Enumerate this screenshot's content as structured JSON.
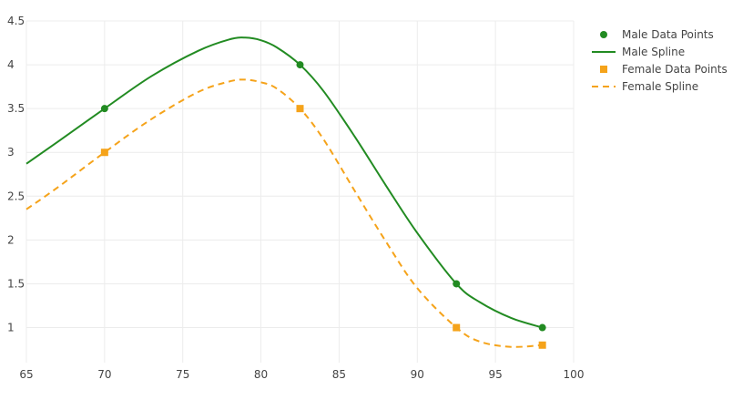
{
  "chart_data": {
    "type": "line",
    "title": "",
    "xlabel": "",
    "ylabel": "",
    "xlim": [
      65,
      100
    ],
    "ylim": [
      0.6,
      4.5
    ],
    "xticks": [
      65,
      70,
      75,
      80,
      85,
      90,
      95,
      100
    ],
    "yticks": [
      1,
      1.5,
      2,
      2.5,
      3,
      3.5,
      4,
      4.5
    ],
    "xtick_labels": [
      "65",
      "70",
      "75",
      "80",
      "85",
      "90",
      "95",
      "100"
    ],
    "ytick_labels": [
      "1",
      "1.5",
      "2",
      "2.5",
      "3",
      "3.5",
      "4",
      "4.5"
    ],
    "grid": true,
    "legend_position": "top-right",
    "series": [
      {
        "name": "Male Data Points",
        "kind": "markers",
        "marker": "circle",
        "color": "#228B22",
        "x": [
          70,
          82.5,
          92.5,
          98
        ],
        "y": [
          3.5,
          4.0,
          1.5,
          1.0
        ]
      },
      {
        "name": "Male Spline",
        "kind": "line",
        "dash": "solid",
        "color": "#228B22",
        "x": [
          65,
          67,
          70,
          73,
          76,
          78,
          79,
          80,
          81,
          82.5,
          84,
          86,
          88,
          90,
          92.5,
          94,
          96,
          98
        ],
        "y": [
          2.87,
          3.12,
          3.5,
          3.87,
          4.16,
          4.29,
          4.31,
          4.28,
          4.2,
          4.0,
          3.7,
          3.18,
          2.62,
          2.08,
          1.5,
          1.29,
          1.11,
          1.0
        ]
      },
      {
        "name": "Female Data Points",
        "kind": "markers",
        "marker": "square",
        "color": "#F5A31A",
        "x": [
          70,
          82.5,
          92.5,
          98
        ],
        "y": [
          3.0,
          3.5,
          1.0,
          0.8
        ]
      },
      {
        "name": "Female Spline",
        "kind": "line",
        "dash": "dashed",
        "color": "#F5A31A",
        "x": [
          65,
          67,
          70,
          73,
          76,
          78,
          79,
          80,
          81,
          82.5,
          84,
          86,
          88,
          90,
          92.5,
          94,
          96,
          98
        ],
        "y": [
          2.35,
          2.6,
          3.0,
          3.38,
          3.69,
          3.81,
          3.83,
          3.8,
          3.73,
          3.5,
          3.15,
          2.56,
          1.98,
          1.45,
          1.0,
          0.84,
          0.78,
          0.8
        ]
      }
    ]
  }
}
